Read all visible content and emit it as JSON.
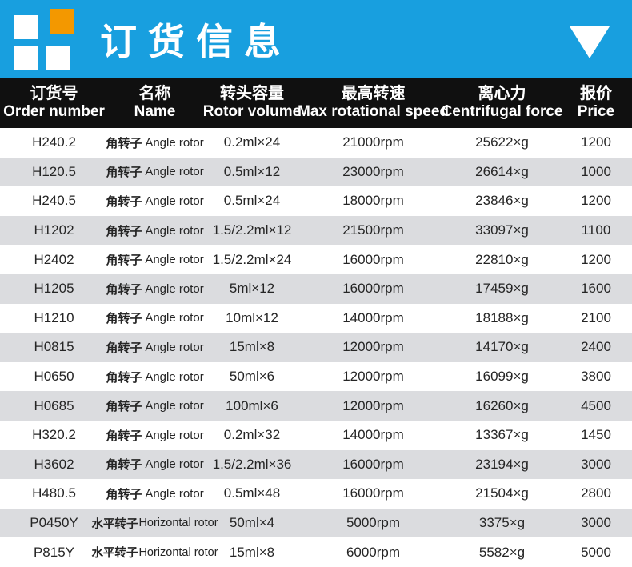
{
  "colors": {
    "banner_blue": "#189FDF",
    "logo_orange": "#F39800",
    "header_black": "#101010",
    "row_alt_gray": "#DBDCDF"
  },
  "banner": {
    "title": "订货信息"
  },
  "table": {
    "columns": [
      {
        "cn": "订货号",
        "en": "Order number"
      },
      {
        "cn": "名称",
        "en": "Name"
      },
      {
        "cn": "转头容量",
        "en": "Rotor volume"
      },
      {
        "cn": "最高转速",
        "en": "Max rotational speed"
      },
      {
        "cn": "离心力",
        "en": "Centrifugal force"
      },
      {
        "cn": "报价",
        "en": "Price"
      }
    ],
    "rows": [
      {
        "order": "H240.2",
        "name_cn": "角转子",
        "name_en": "Angle rotor",
        "volume": "0.2ml×24",
        "speed": "21000rpm",
        "force": "25622×g",
        "price": "1200"
      },
      {
        "order": "H120.5",
        "name_cn": "角转子",
        "name_en": "Angle rotor",
        "volume": "0.5ml×12",
        "speed": "23000rpm",
        "force": "26614×g",
        "price": "1000"
      },
      {
        "order": "H240.5",
        "name_cn": "角转子",
        "name_en": "Angle rotor",
        "volume": "0.5ml×24",
        "speed": "18000rpm",
        "force": "23846×g",
        "price": "1200"
      },
      {
        "order": "H1202",
        "name_cn": "角转子",
        "name_en": "Angle rotor",
        "volume": "1.5/2.2ml×12",
        "speed": "21500rpm",
        "force": "33097×g",
        "price": "1100"
      },
      {
        "order": "H2402",
        "name_cn": "角转子",
        "name_en": "Angle rotor",
        "volume": "1.5/2.2ml×24",
        "speed": "16000rpm",
        "force": "22810×g",
        "price": "1200"
      },
      {
        "order": "H1205",
        "name_cn": "角转子",
        "name_en": "Angle rotor",
        "volume": "5ml×12",
        "speed": "16000rpm",
        "force": "17459×g",
        "price": "1600"
      },
      {
        "order": "H1210",
        "name_cn": "角转子",
        "name_en": "Angle rotor",
        "volume": "10ml×12",
        "speed": "14000rpm",
        "force": "18188×g",
        "price": "2100"
      },
      {
        "order": "H0815",
        "name_cn": "角转子",
        "name_en": "Angle rotor",
        "volume": "15ml×8",
        "speed": "12000rpm",
        "force": "14170×g",
        "price": "2400"
      },
      {
        "order": "H0650",
        "name_cn": "角转子",
        "name_en": "Angle rotor",
        "volume": "50ml×6",
        "speed": "12000rpm",
        "force": "16099×g",
        "price": "3800"
      },
      {
        "order": "H0685",
        "name_cn": "角转子",
        "name_en": "Angle rotor",
        "volume": "100ml×6",
        "speed": "12000rpm",
        "force": "16260×g",
        "price": "4500"
      },
      {
        "order": "H320.2",
        "name_cn": "角转子",
        "name_en": "Angle rotor",
        "volume": "0.2ml×32",
        "speed": "14000rpm",
        "force": "13367×g",
        "price": "1450"
      },
      {
        "order": "H3602",
        "name_cn": "角转子",
        "name_en": "Angle rotor",
        "volume": "1.5/2.2ml×36",
        "speed": "16000rpm",
        "force": "23194×g",
        "price": "3000"
      },
      {
        "order": "H480.5",
        "name_cn": "角转子",
        "name_en": "Angle rotor",
        "volume": "0.5ml×48",
        "speed": "16000rpm",
        "force": "21504×g",
        "price": "2800"
      },
      {
        "order": "P0450Y",
        "name_cn": "水平转子",
        "name_en": "Horizontal rotor",
        "volume": "50ml×4",
        "speed": "5000rpm",
        "force": "3375×g",
        "price": "3000"
      },
      {
        "order": "P815Y",
        "name_cn": "水平转子",
        "name_en": "Horizontal rotor",
        "volume": "15ml×8",
        "speed": "6000rpm",
        "force": "5582×g",
        "price": "5000"
      }
    ]
  }
}
